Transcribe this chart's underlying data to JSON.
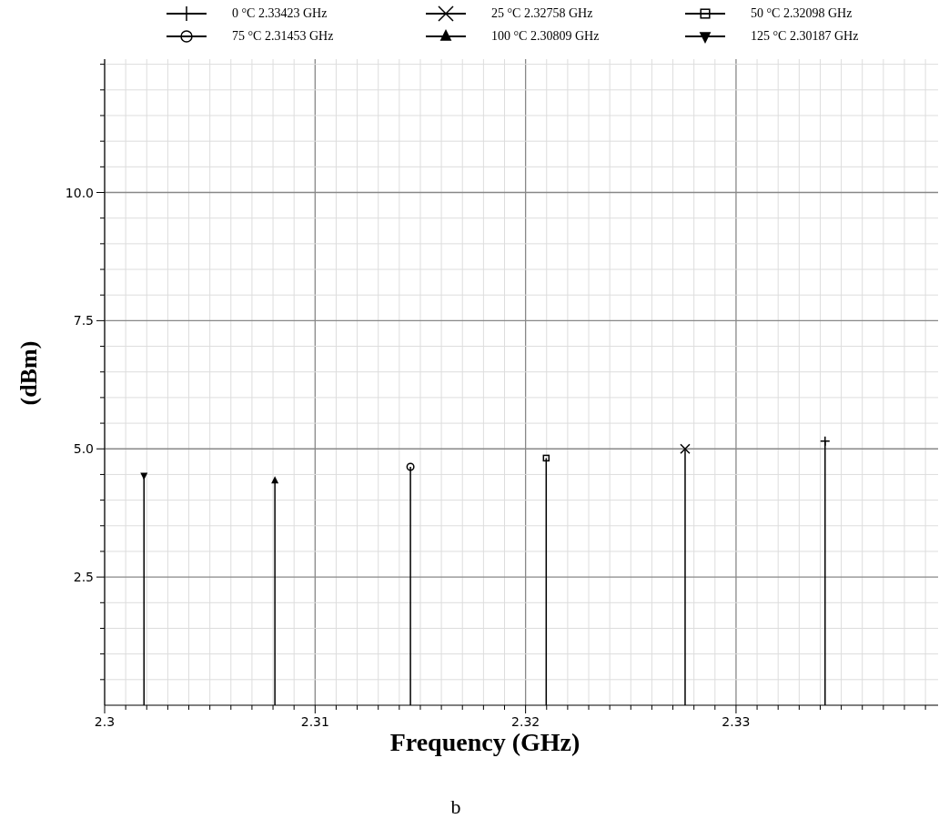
{
  "chart_data": {
    "type": "lollipop",
    "xlabel": "Frequency (GHz)",
    "ylabel": "(dBm)",
    "annotations": [
      "b"
    ],
    "xlim": [
      2.3,
      2.3396
    ],
    "ylim": [
      0,
      12.6
    ],
    "xticks": [
      2.3,
      {
        "value": 2.301,
        "label": null
      },
      {
        "value": 2.302,
        "label": null
      },
      {
        "value": 2.303,
        "label": null
      },
      {
        "value": 2.304,
        "label": null
      },
      {
        "value": 2.305,
        "label": null
      },
      {
        "value": 2.306,
        "label": null
      },
      {
        "value": 2.307,
        "label": null
      },
      {
        "value": 2.308,
        "label": null
      },
      {
        "value": 2.309,
        "label": null
      },
      2.31,
      {
        "value": 2.311,
        "label": null
      },
      {
        "value": 2.312,
        "label": null
      },
      {
        "value": 2.313,
        "label": null
      },
      {
        "value": 2.314,
        "label": null
      },
      {
        "value": 2.315,
        "label": null
      },
      {
        "value": 2.316,
        "label": null
      },
      {
        "value": 2.317,
        "label": null
      },
      {
        "value": 2.318,
        "label": null
      },
      {
        "value": 2.319,
        "label": null
      },
      2.32,
      {
        "value": 2.321,
        "label": null
      },
      {
        "value": 2.322,
        "label": null
      },
      {
        "value": 2.323,
        "label": null
      },
      {
        "value": 2.324,
        "label": null
      },
      {
        "value": 2.325,
        "label": null
      },
      {
        "value": 2.326,
        "label": null
      },
      {
        "value": 2.327,
        "label": null
      },
      {
        "value": 2.328,
        "label": null
      },
      {
        "value": 2.329,
        "label": null
      },
      2.33,
      {
        "value": 2.331,
        "label": null
      },
      {
        "value": 2.332,
        "label": null
      },
      {
        "value": 2.333,
        "label": null
      },
      {
        "value": 2.334,
        "label": null
      },
      {
        "value": 2.335,
        "label": null
      },
      {
        "value": 2.336,
        "label": null
      },
      {
        "value": 2.337,
        "label": null
      },
      {
        "value": 2.338,
        "label": null
      },
      {
        "value": 2.339,
        "label": null
      }
    ],
    "yticks": [
      {
        "value": 0.5,
        "label": null
      },
      {
        "value": 1,
        "label": null
      },
      {
        "value": 1.5,
        "label": null
      },
      {
        "value": 2,
        "label": null
      },
      2.5,
      {
        "value": 3,
        "label": null
      },
      {
        "value": 3.5,
        "label": null
      },
      {
        "value": 4,
        "label": null
      },
      {
        "value": 4.5,
        "label": null
      },
      {
        "value": 5,
        "label": "5.0"
      },
      {
        "value": 5.5,
        "label": null
      },
      {
        "value": 6,
        "label": null
      },
      {
        "value": 6.5,
        "label": null
      },
      {
        "value": 7,
        "label": null
      },
      7.5,
      {
        "value": 8,
        "label": null
      },
      {
        "value": 8.5,
        "label": null
      },
      {
        "value": 9,
        "label": null
      },
      {
        "value": 9.5,
        "label": null
      },
      {
        "value": 10,
        "label": "10.0"
      },
      {
        "value": 10.5,
        "label": null
      },
      {
        "value": 11,
        "label": null
      },
      {
        "value": 11.5,
        "label": null
      },
      {
        "value": 12,
        "label": null
      },
      {
        "value": 12.5,
        "label": null
      }
    ],
    "grid": true,
    "legend": "top",
    "series": [
      {
        "name": "0 °C  2.33423 GHz",
        "color": "#000000",
        "marker": "cross",
        "x": [
          2.33423
        ],
        "values": [
          5.15
        ]
      },
      {
        "name": "25 °C  2.32758 GHz",
        "color": "#000000",
        "marker": "x",
        "x": [
          2.32758
        ],
        "values": [
          5.0
        ]
      },
      {
        "name": "50 °C  2.32098 GHz",
        "color": "#000000",
        "marker": "square",
        "x": [
          2.32098
        ],
        "values": [
          4.82
        ]
      },
      {
        "name": "75 °C  2.31453 GHz",
        "color": "#000000",
        "marker": "circle",
        "x": [
          2.31453
        ],
        "values": [
          4.65
        ]
      },
      {
        "name": "100 °C  2.30809 GHz",
        "color": "#000000",
        "marker": "triangle",
        "x": [
          2.30809
        ],
        "values": [
          4.38
        ]
      },
      {
        "name": "125 °C  2.30187 GHz",
        "color": "#000000",
        "marker": "triangle-down",
        "x": [
          2.30187
        ],
        "values": [
          4.48
        ]
      }
    ]
  }
}
